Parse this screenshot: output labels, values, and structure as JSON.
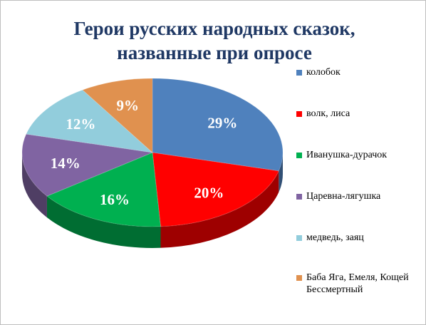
{
  "chart_data": {
    "type": "pie3d",
    "title": "Герои русских народных сказок, названные при опросе",
    "categories": [
      "колобок",
      "волк, лиса",
      "Иванушка-дурачок",
      "Царевна-лягушка",
      "медведь, заяц",
      "Баба Яга, Емеля, Кощей Бессмертный"
    ],
    "values": [
      29,
      20,
      16,
      14,
      12,
      9
    ],
    "value_labels": [
      "29%",
      "20%",
      "16%",
      "14%",
      "12%",
      "9%"
    ],
    "colors": [
      "#4f81bd",
      "#ff0000",
      "#00b050",
      "#8064a2",
      "#92cddc",
      "#e0914f"
    ],
    "legend": "right"
  }
}
